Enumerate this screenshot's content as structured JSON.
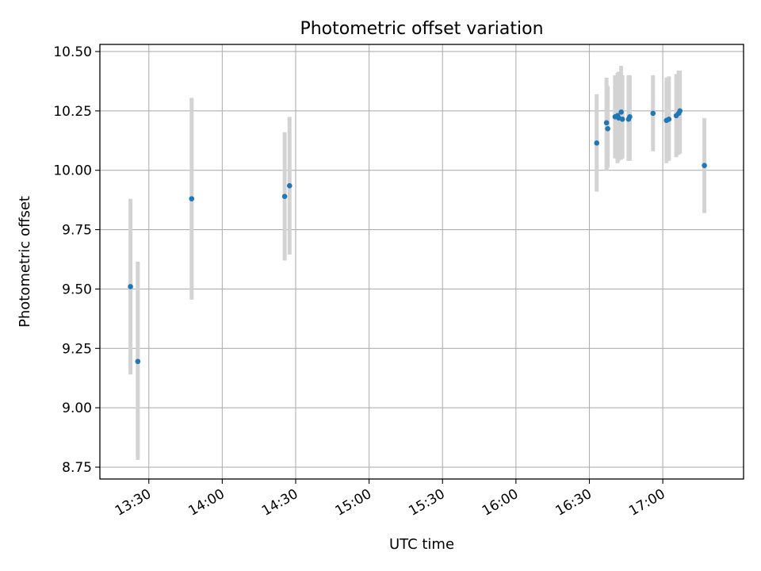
{
  "chart_data": {
    "type": "scatter",
    "title": "Photometric offset variation",
    "xlabel": "UTC time",
    "ylabel": "Photometric offset",
    "xlim": [
      "13:10",
      "17:33"
    ],
    "ylim": [
      8.7,
      10.53
    ],
    "x_ticks": [
      "13:30",
      "14:00",
      "14:30",
      "15:00",
      "15:30",
      "16:00",
      "16:30",
      "17:00"
    ],
    "y_ticks": [
      "8.75",
      "9.00",
      "9.25",
      "9.50",
      "9.75",
      "10.00",
      "10.25",
      "10.50"
    ],
    "grid": true,
    "colors": {
      "point": "#1f77b4",
      "errorbar": "#d3d3d3",
      "grid": "#b0b0b0"
    },
    "points": [
      {
        "x": "13:22:30",
        "y": 9.51,
        "err_low": 9.14,
        "err_high": 9.88
      },
      {
        "x": "13:25:30",
        "y": 9.195,
        "err_low": 8.78,
        "err_high": 9.615
      },
      {
        "x": "13:47:30",
        "y": 9.88,
        "err_low": 9.455,
        "err_high": 10.305
      },
      {
        "x": "14:25:30",
        "y": 9.89,
        "err_low": 9.62,
        "err_high": 10.16
      },
      {
        "x": "14:27:30",
        "y": 9.935,
        "err_low": 9.645,
        "err_high": 10.225
      },
      {
        "x": "16:33:00",
        "y": 10.115,
        "err_low": 9.91,
        "err_high": 10.32
      },
      {
        "x": "16:37:00",
        "y": 10.2,
        "err_low": 10.0,
        "err_high": 10.39
      },
      {
        "x": "16:37:30",
        "y": 10.175,
        "err_low": 10.01,
        "err_high": 10.355
      },
      {
        "x": "16:40:30",
        "y": 10.225,
        "err_low": 10.05,
        "err_high": 10.4
      },
      {
        "x": "16:41:30",
        "y": 10.23,
        "err_low": 10.03,
        "err_high": 10.41
      },
      {
        "x": "16:42:00",
        "y": 10.22,
        "err_low": 10.04,
        "err_high": 10.415
      },
      {
        "x": "16:43:00",
        "y": 10.245,
        "err_low": 10.045,
        "err_high": 10.44
      },
      {
        "x": "16:43:30",
        "y": 10.215,
        "err_low": 10.05,
        "err_high": 10.4
      },
      {
        "x": "16:46:00",
        "y": 10.215,
        "err_low": 10.04,
        "err_high": 10.4
      },
      {
        "x": "16:46:30",
        "y": 10.225,
        "err_low": 10.04,
        "err_high": 10.4
      },
      {
        "x": "16:56:00",
        "y": 10.24,
        "err_low": 10.08,
        "err_high": 10.4
      },
      {
        "x": "17:01:30",
        "y": 10.21,
        "err_low": 10.03,
        "err_high": 10.39
      },
      {
        "x": "17:02:30",
        "y": 10.215,
        "err_low": 10.04,
        "err_high": 10.395
      },
      {
        "x": "17:05:30",
        "y": 10.23,
        "err_low": 10.055,
        "err_high": 10.405
      },
      {
        "x": "17:06:30",
        "y": 10.24,
        "err_low": 10.065,
        "err_high": 10.42
      },
      {
        "x": "17:07:00",
        "y": 10.25,
        "err_low": 10.07,
        "err_high": 10.42
      },
      {
        "x": "17:17:00",
        "y": 10.02,
        "err_low": 9.82,
        "err_high": 10.22
      }
    ]
  }
}
